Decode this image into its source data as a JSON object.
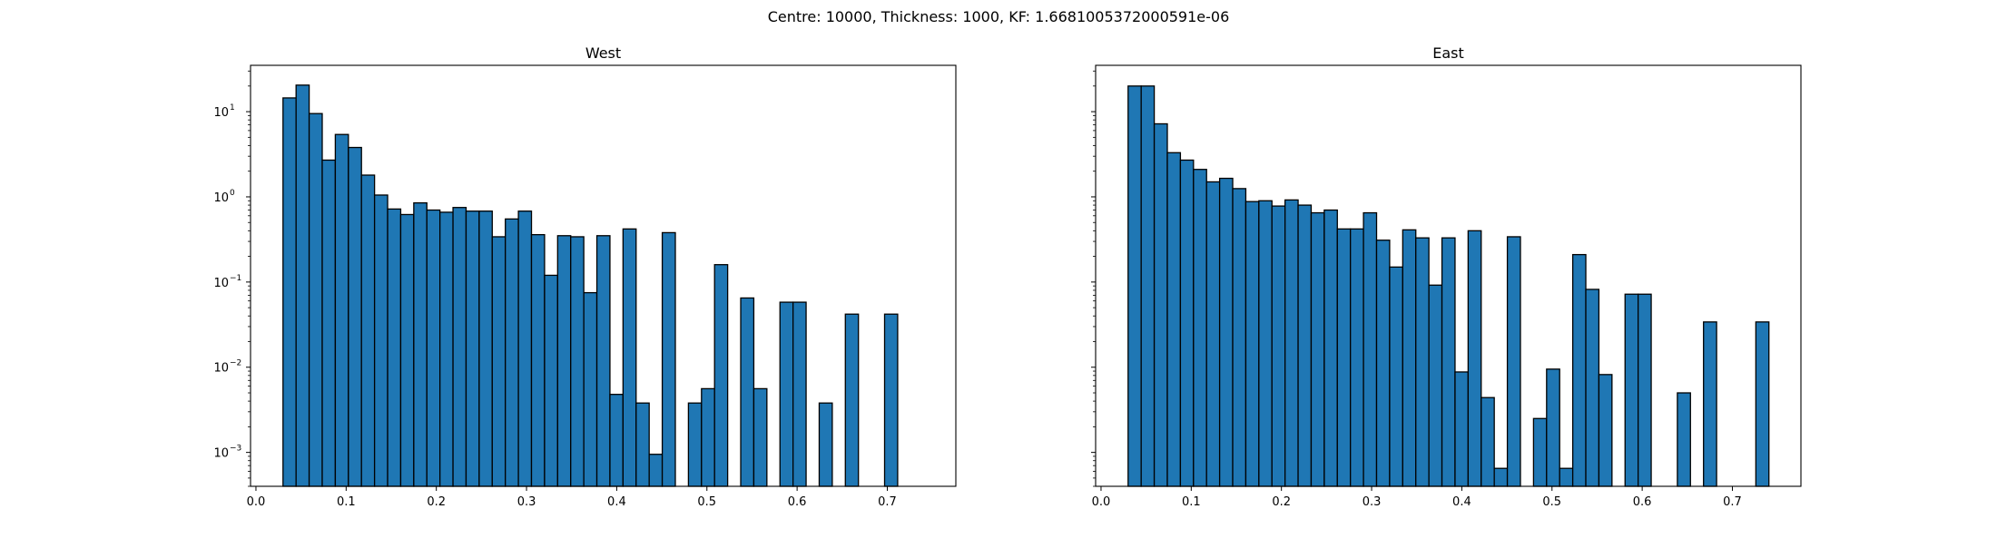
{
  "figure": {
    "suptitle": "Centre: 10000, Thickness: 1000, KF: 1.6681005372000591e-06"
  },
  "style": {
    "bar_color": "#1f77b4",
    "edge_color": "#000000"
  },
  "chart_data": [
    {
      "type": "bar",
      "title": "West",
      "xlabel": "",
      "ylabel": "",
      "yscale": "log",
      "xlim": [
        -0.006,
        0.776
      ],
      "ylim": [
        0.0004,
        35
      ],
      "bin_width": 0.0145,
      "xticks": [
        0.0,
        0.1,
        0.2,
        0.3,
        0.4,
        0.5,
        0.6,
        0.7
      ],
      "xtick_labels": [
        "0.0",
        "0.1",
        "0.2",
        "0.3",
        "0.4",
        "0.5",
        "0.6",
        "0.7"
      ],
      "yticks": [
        0.001,
        0.01,
        0.1,
        1,
        10
      ],
      "ytick_labels": [
        "10",
        "10",
        "10",
        "10",
        "10"
      ],
      "ytick_exponents": [
        "−3",
        "−2",
        "−1",
        "0",
        "1"
      ],
      "bin_starts": [
        0.03,
        0.0445,
        0.059,
        0.0735,
        0.088,
        0.1025,
        0.117,
        0.1315,
        0.146,
        0.1605,
        0.175,
        0.1895,
        0.204,
        0.2185,
        0.233,
        0.2475,
        0.262,
        0.2765,
        0.291,
        0.3055,
        0.32,
        0.3345,
        0.349,
        0.3635,
        0.378,
        0.3925,
        0.407,
        0.4215,
        0.436,
        0.4505,
        0.465,
        0.4795,
        0.494,
        0.5085,
        0.523,
        0.5375,
        0.552,
        0.5665,
        0.581,
        0.5955,
        0.61,
        0.6245,
        0.639,
        0.6535,
        0.668,
        0.6825,
        0.697,
        0.7115,
        0.726
      ],
      "values": [
        14.5,
        20.5,
        9.5,
        2.7,
        5.4,
        3.8,
        1.8,
        1.05,
        0.72,
        0.62,
        0.85,
        0.7,
        0.66,
        0.75,
        0.68,
        0.68,
        0.34,
        0.55,
        0.68,
        0.36,
        0.12,
        0.35,
        0.34,
        0.075,
        0.35,
        0.0048,
        0.42,
        0.0038,
        0.00095,
        0.38,
        0,
        0.0038,
        0.0056,
        0.16,
        0,
        0.065,
        0.0056,
        0,
        0.058,
        0.058,
        0,
        0.0038,
        0,
        0.042,
        0,
        0,
        0.042,
        0,
        0
      ]
    },
    {
      "type": "bar",
      "title": "East",
      "xlabel": "",
      "ylabel": "",
      "yscale": "log",
      "xlim": [
        -0.006,
        0.776
      ],
      "ylim": [
        0.0004,
        35
      ],
      "bin_width": 0.0145,
      "xticks": [
        0.0,
        0.1,
        0.2,
        0.3,
        0.4,
        0.5,
        0.6,
        0.7
      ],
      "xtick_labels": [
        "0.0",
        "0.1",
        "0.2",
        "0.3",
        "0.4",
        "0.5",
        "0.6",
        "0.7"
      ],
      "yticks": [
        0.001,
        0.01,
        0.1,
        1,
        10
      ],
      "ytick_labels": [],
      "ytick_exponents": [],
      "bin_starts": [
        0.03,
        0.0445,
        0.059,
        0.0735,
        0.088,
        0.1025,
        0.117,
        0.1315,
        0.146,
        0.1605,
        0.175,
        0.1895,
        0.204,
        0.2185,
        0.233,
        0.2475,
        0.262,
        0.2765,
        0.291,
        0.3055,
        0.32,
        0.3345,
        0.349,
        0.3635,
        0.378,
        0.3925,
        0.407,
        0.4215,
        0.436,
        0.4505,
        0.465,
        0.4795,
        0.494,
        0.5085,
        0.523,
        0.5375,
        0.552,
        0.5665,
        0.581,
        0.5955,
        0.61,
        0.6245,
        0.639,
        0.6535,
        0.668,
        0.6825,
        0.697,
        0.7115,
        0.726
      ],
      "values": [
        20.0,
        20.0,
        7.2,
        3.3,
        2.7,
        2.1,
        1.5,
        1.65,
        1.25,
        0.88,
        0.9,
        0.78,
        0.92,
        0.8,
        0.65,
        0.7,
        0.42,
        0.42,
        0.65,
        0.31,
        0.15,
        0.41,
        0.33,
        0.092,
        0.33,
        0.0088,
        0.4,
        0.0044,
        0.00065,
        0.34,
        0,
        0.0025,
        0.0095,
        0.00065,
        0.21,
        0.082,
        0.0082,
        0,
        0.072,
        0.072,
        0,
        0,
        0.005,
        0,
        0.034,
        0,
        0,
        0,
        0.034
      ]
    }
  ]
}
